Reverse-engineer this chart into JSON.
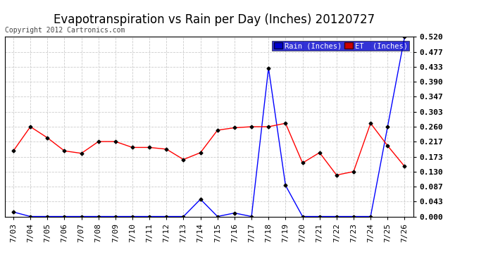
{
  "title": "Evapotranspiration vs Rain per Day (Inches) 20120727",
  "copyright": "Copyright 2012 Cartronics.com",
  "x_labels": [
    "7/03",
    "7/04",
    "7/05",
    "7/06",
    "7/07",
    "7/08",
    "7/09",
    "7/10",
    "7/11",
    "7/12",
    "7/13",
    "7/14",
    "7/15",
    "7/16",
    "7/17",
    "7/18",
    "7/19",
    "7/20",
    "7/21",
    "7/22",
    "7/23",
    "7/24",
    "7/25",
    "7/26"
  ],
  "rain_data": [
    0.013,
    0.0,
    0.0,
    0.0,
    0.0,
    0.0,
    0.0,
    0.0,
    0.0,
    0.0,
    0.0,
    0.05,
    0.0,
    0.01,
    0.0,
    0.43,
    0.09,
    0.0,
    0.0,
    0.0,
    0.0,
    0.0,
    0.26,
    0.52
  ],
  "et_data": [
    0.19,
    0.26,
    0.228,
    0.19,
    0.183,
    0.217,
    0.217,
    0.2,
    0.2,
    0.195,
    0.165,
    0.185,
    0.25,
    0.257,
    0.26,
    0.26,
    0.27,
    0.155,
    0.185,
    0.12,
    0.13,
    0.27,
    0.205,
    0.145
  ],
  "rain_color": "#0000ff",
  "et_color": "#ff0000",
  "bg_color": "#ffffff",
  "grid_color": "#cccccc",
  "ylim": [
    0.0,
    0.52
  ],
  "yticks": [
    0.0,
    0.043,
    0.087,
    0.13,
    0.173,
    0.217,
    0.26,
    0.303,
    0.347,
    0.39,
    0.433,
    0.477,
    0.52
  ],
  "marker": "D",
  "marker_size": 2.5,
  "line_width": 1.0,
  "title_fontsize": 12,
  "tick_fontsize": 8,
  "legend_rain_label": "Rain (Inches)",
  "legend_rain_bg": "#0000cc",
  "legend_et_bg": "#cc0000"
}
